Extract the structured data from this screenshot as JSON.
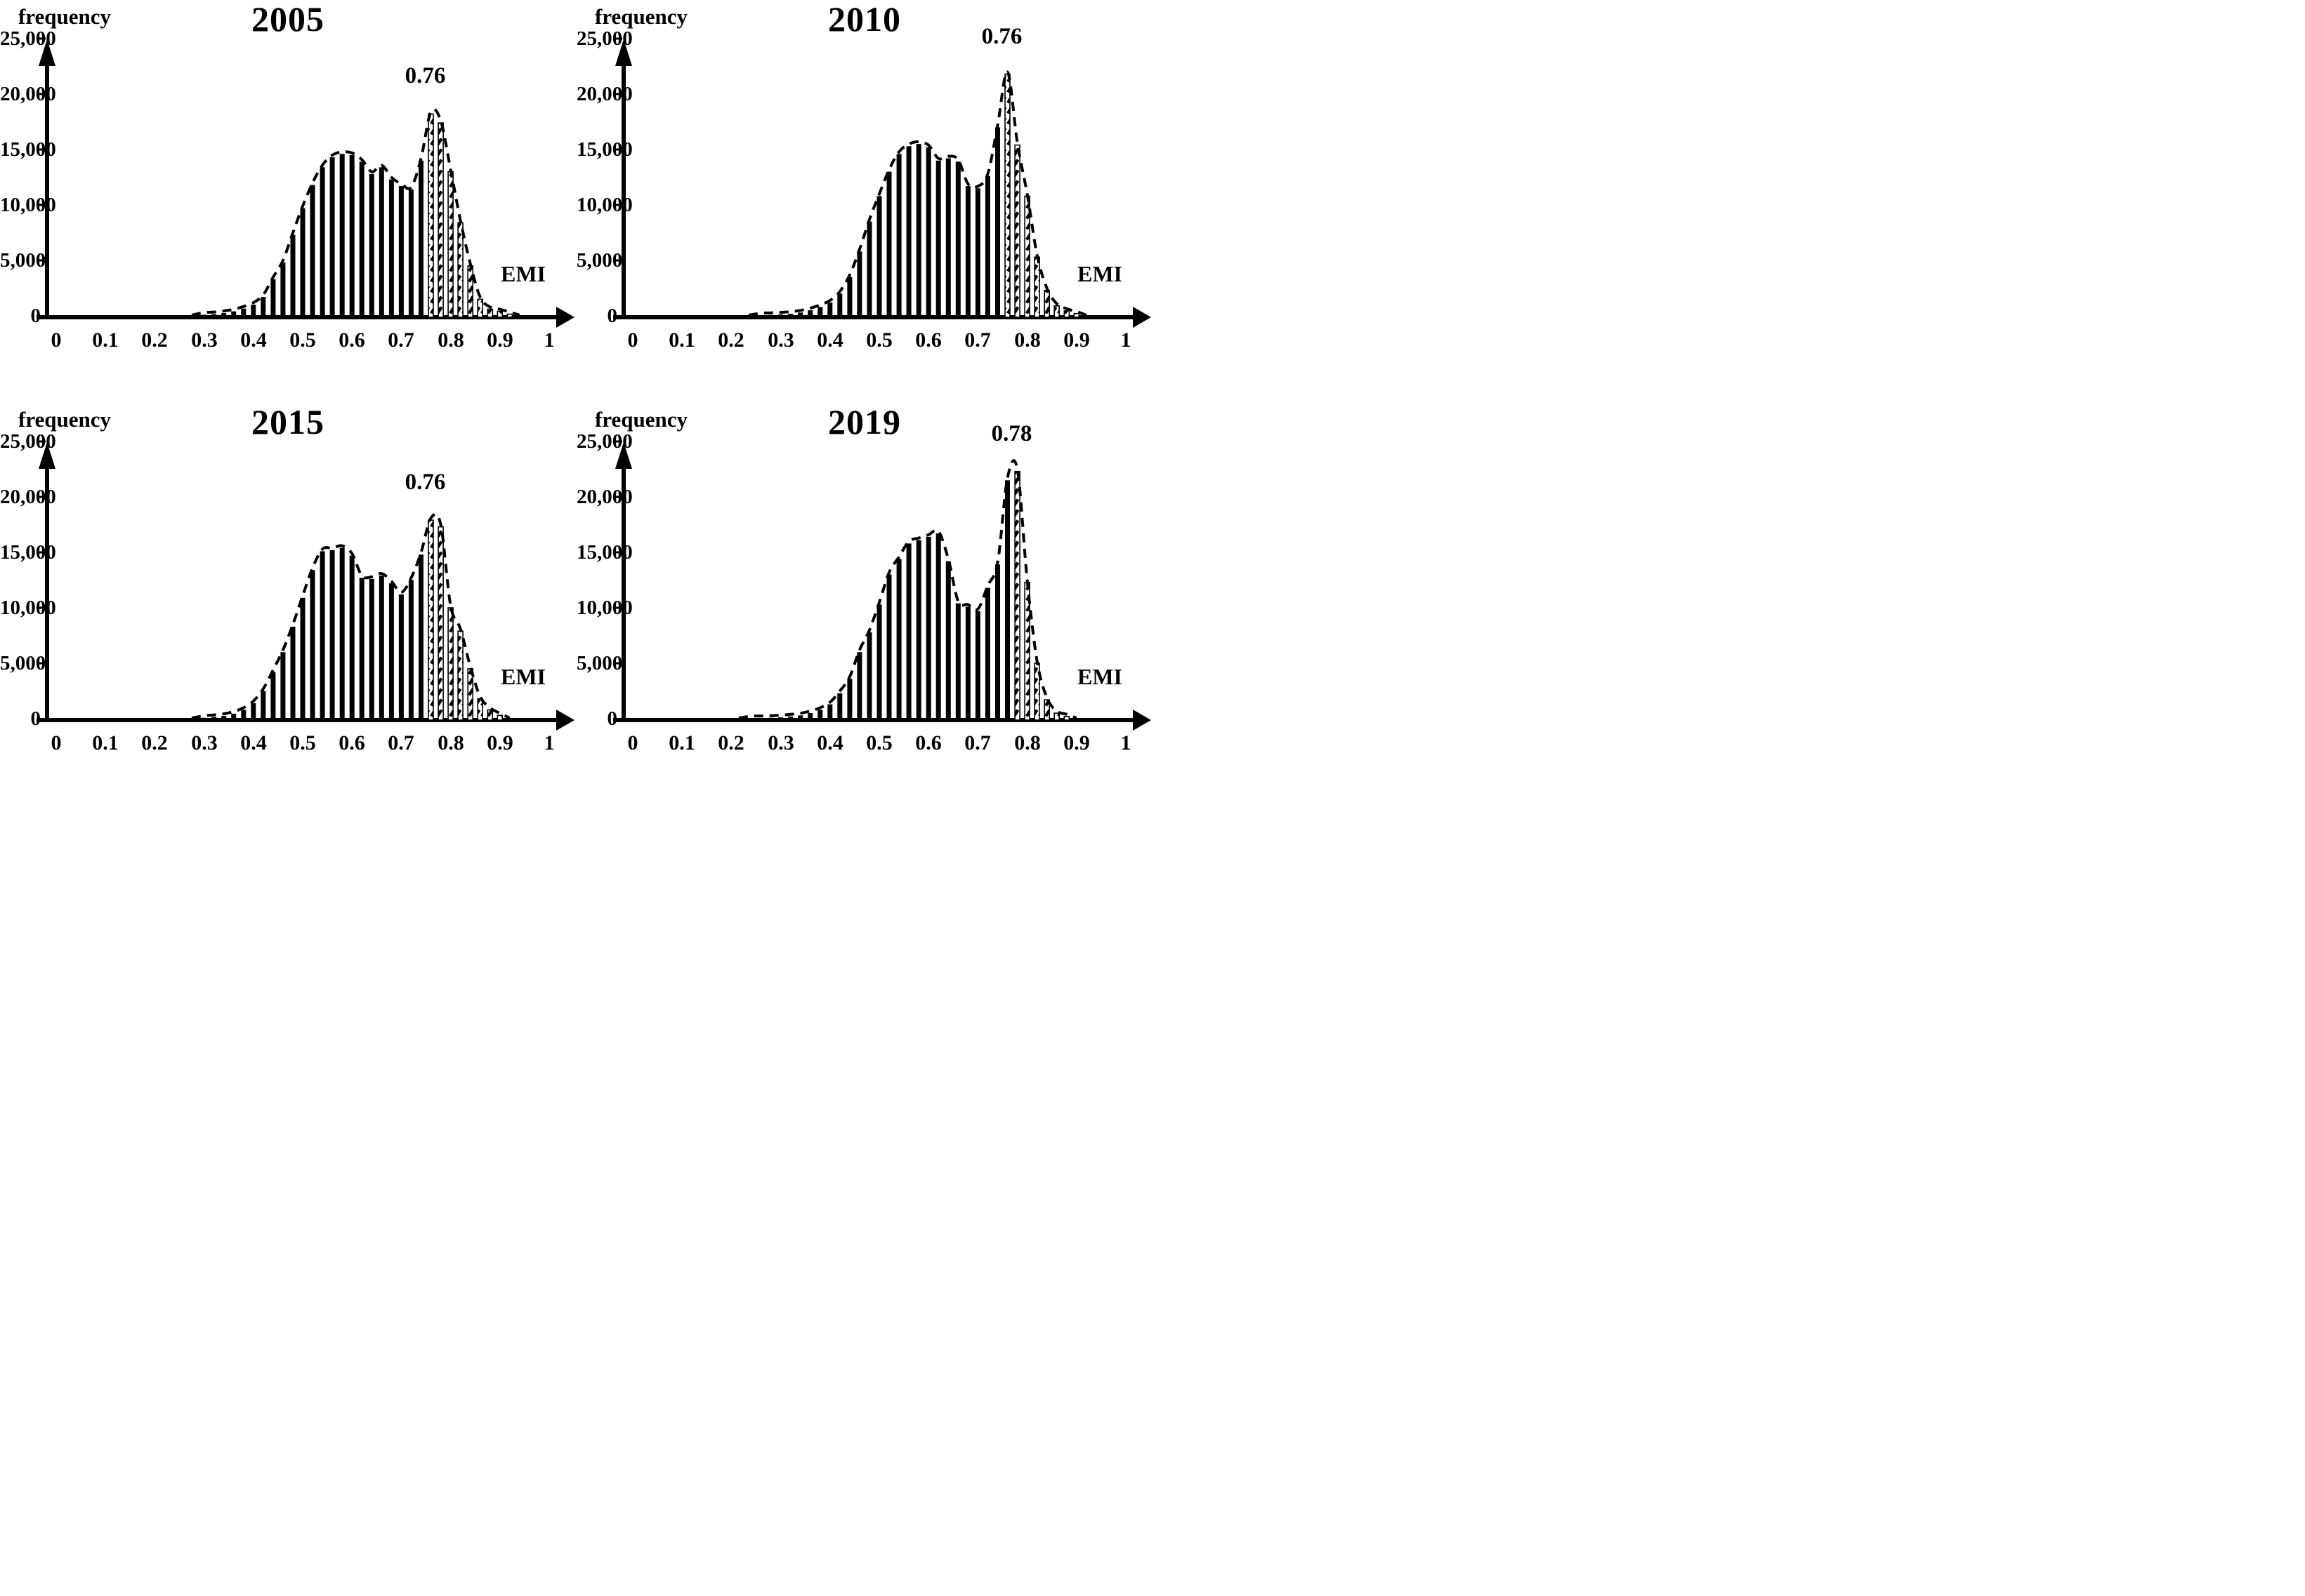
{
  "shared": {
    "y_axis_title": "frequency",
    "x_axis_title": "EMI",
    "y_ticks": [
      "25,000",
      "20,000",
      "15,000",
      "10,000",
      "5,000",
      "0"
    ],
    "x_ticks": [
      "0",
      "0.1",
      "0.2",
      "0.3",
      "0.4",
      "0.5",
      "0.6",
      "0.7",
      "0.8",
      "0.9",
      "1"
    ],
    "colors": {
      "bar": "#000000",
      "background": "#ffffff",
      "hatched_bar_fill": "#ffffff",
      "envelope": "#000000"
    }
  },
  "panels": [
    {
      "title": "2005",
      "peak_label": "0.76"
    },
    {
      "title": "2010",
      "peak_label": "0.76"
    },
    {
      "title": "2015",
      "peak_label": "0.76"
    },
    {
      "title": "2019",
      "peak_label": "0.78"
    }
  ],
  "chart_data": [
    {
      "type": "bar",
      "title": "2005",
      "xlabel": "EMI",
      "ylabel": "frequency",
      "xlim": [
        0,
        1
      ],
      "ylim": [
        0,
        25000
      ],
      "bin_width": 0.02,
      "grid": false,
      "envelope": "dashed",
      "hatch_from_x": 0.76,
      "peak_annotation": {
        "x": 0.76,
        "label": "0.76"
      },
      "x": [
        0.3,
        0.32,
        0.34,
        0.36,
        0.38,
        0.4,
        0.42,
        0.44,
        0.46,
        0.48,
        0.5,
        0.52,
        0.54,
        0.56,
        0.58,
        0.6,
        0.62,
        0.64,
        0.66,
        0.68,
        0.7,
        0.72,
        0.74,
        0.76,
        0.78,
        0.8,
        0.82,
        0.84,
        0.86,
        0.88,
        0.9,
        0.92
      ],
      "frequencies": [
        100,
        150,
        250,
        400,
        650,
        1000,
        1700,
        3300,
        4800,
        7300,
        9700,
        11800,
        13400,
        14300,
        14600,
        14500,
        13900,
        12800,
        13400,
        12300,
        11700,
        11400,
        14000,
        18200,
        17400,
        13000,
        8400,
        4500,
        1500,
        600,
        400,
        150
      ]
    },
    {
      "type": "bar",
      "title": "2010",
      "xlabel": "EMI",
      "ylabel": "frequency",
      "xlim": [
        0,
        1
      ],
      "ylim": [
        0,
        25000
      ],
      "bin_width": 0.02,
      "grid": false,
      "envelope": "dashed",
      "hatch_from_x": 0.76,
      "peak_annotation": {
        "x": 0.76,
        "label": "0.76"
      },
      "x": [
        0.26,
        0.28,
        0.3,
        0.32,
        0.34,
        0.36,
        0.38,
        0.4,
        0.42,
        0.44,
        0.46,
        0.48,
        0.5,
        0.52,
        0.54,
        0.56,
        0.58,
        0.6,
        0.62,
        0.64,
        0.66,
        0.68,
        0.7,
        0.72,
        0.74,
        0.76,
        0.78,
        0.8,
        0.82,
        0.84,
        0.86,
        0.88,
        0.9
      ],
      "frequencies": [
        50,
        80,
        120,
        180,
        300,
        500,
        800,
        1200,
        2000,
        3500,
        5800,
        8500,
        10800,
        13000,
        14600,
        15300,
        15500,
        15200,
        14000,
        14200,
        13900,
        11700,
        11500,
        12600,
        17000,
        21800,
        15400,
        10800,
        5300,
        2300,
        900,
        450,
        200
      ]
    },
    {
      "type": "bar",
      "title": "2015",
      "xlabel": "EMI",
      "ylabel": "frequency",
      "xlim": [
        0,
        1
      ],
      "ylim": [
        0,
        25000
      ],
      "bin_width": 0.02,
      "grid": false,
      "envelope": "dashed",
      "hatch_from_x": 0.76,
      "peak_annotation": {
        "x": 0.76,
        "label": "0.76"
      },
      "x": [
        0.3,
        0.32,
        0.34,
        0.36,
        0.38,
        0.4,
        0.42,
        0.44,
        0.46,
        0.48,
        0.5,
        0.52,
        0.54,
        0.56,
        0.58,
        0.6,
        0.62,
        0.64,
        0.66,
        0.68,
        0.7,
        0.72,
        0.74,
        0.76,
        0.78,
        0.8,
        0.82,
        0.84,
        0.86,
        0.88,
        0.9
      ],
      "frequencies": [
        80,
        150,
        250,
        450,
        800,
        1400,
        2500,
        4200,
        6000,
        8300,
        10900,
        13400,
        15100,
        15200,
        15400,
        14700,
        12700,
        12600,
        12900,
        12200,
        11200,
        12500,
        14800,
        17900,
        17300,
        10000,
        7900,
        4500,
        1800,
        800,
        300
      ]
    },
    {
      "type": "bar",
      "title": "2019",
      "xlabel": "EMI",
      "ylabel": "frequency",
      "xlim": [
        0,
        1
      ],
      "ylim": [
        0,
        25000
      ],
      "bin_width": 0.02,
      "grid": false,
      "envelope": "dashed",
      "hatch_from_x": 0.78,
      "peak_annotation": {
        "x": 0.78,
        "label": "0.78"
      },
      "x": [
        0.24,
        0.26,
        0.28,
        0.3,
        0.32,
        0.34,
        0.36,
        0.38,
        0.4,
        0.42,
        0.44,
        0.46,
        0.48,
        0.5,
        0.52,
        0.54,
        0.56,
        0.58,
        0.6,
        0.62,
        0.64,
        0.66,
        0.68,
        0.7,
        0.72,
        0.74,
        0.76,
        0.78,
        0.8,
        0.82,
        0.84,
        0.86,
        0.88
      ],
      "frequencies": [
        40,
        60,
        80,
        120,
        200,
        300,
        500,
        800,
        1300,
        2300,
        3600,
        6000,
        7800,
        10300,
        13000,
        14400,
        15800,
        16100,
        16400,
        16700,
        14200,
        10400,
        10100,
        9700,
        11800,
        13900,
        21500,
        22300,
        12300,
        5000,
        1700,
        500,
        200
      ]
    }
  ]
}
